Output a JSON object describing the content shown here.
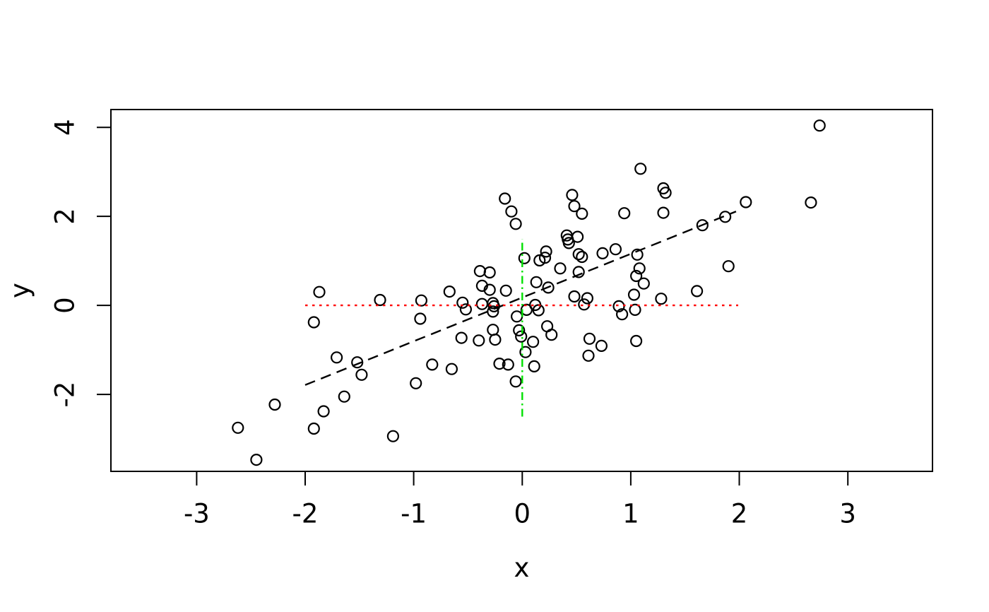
{
  "chart_data": {
    "type": "scatter",
    "title": "",
    "xlabel": "x",
    "ylabel": "y",
    "x_ticks": [
      -3,
      -2,
      -1,
      0,
      1,
      2,
      3
    ],
    "y_ticks": [
      -2,
      0,
      2,
      4
    ],
    "xlim": [
      -3.79,
      3.78
    ],
    "ylim": [
      -3.73,
      4.4
    ],
    "grid": false,
    "legend": "none",
    "marker": "open-circle",
    "marker_color": "#000000",
    "background": "#ffffff",
    "points": [
      [
        -2.62,
        -2.75
      ],
      [
        -2.45,
        -3.47
      ],
      [
        -2.28,
        -2.23
      ],
      [
        -1.92,
        -2.77
      ],
      [
        -1.83,
        -2.38
      ],
      [
        -1.64,
        -2.05
      ],
      [
        -1.19,
        -2.94
      ],
      [
        -1.71,
        -1.17
      ],
      [
        -1.52,
        -1.28
      ],
      [
        -1.48,
        -1.56
      ],
      [
        -1.92,
        -0.38
      ],
      [
        -1.87,
        0.3
      ],
      [
        -1.31,
        0.12
      ],
      [
        -0.98,
        -1.75
      ],
      [
        -0.94,
        -0.3
      ],
      [
        -0.93,
        0.11
      ],
      [
        -0.83,
        -1.33
      ],
      [
        -0.67,
        0.31
      ],
      [
        -0.65,
        -1.43
      ],
      [
        -0.56,
        -0.73
      ],
      [
        -0.55,
        0.06
      ],
      [
        -0.52,
        -0.09
      ],
      [
        -0.4,
        -0.79
      ],
      [
        -0.39,
        0.77
      ],
      [
        -0.3,
        0.74
      ],
      [
        -0.37,
        0.44
      ],
      [
        -0.3,
        0.35
      ],
      [
        -0.15,
        0.33
      ],
      [
        -0.37,
        0.03
      ],
      [
        -0.27,
        0.05
      ],
      [
        -0.26,
        -0.02
      ],
      [
        -0.27,
        -0.14
      ],
      [
        -0.27,
        -0.55
      ],
      [
        -0.25,
        -0.77
      ],
      [
        -0.21,
        -1.31
      ],
      [
        -0.13,
        -1.33
      ],
      [
        -0.06,
        -1.71
      ],
      [
        -0.05,
        -0.25
      ],
      [
        -0.03,
        -0.56
      ],
      [
        -0.01,
        -0.7
      ],
      [
        0.03,
        -1.05
      ],
      [
        0.04,
        -0.1
      ],
      [
        0.1,
        -0.82
      ],
      [
        0.11,
        -1.37
      ],
      [
        0.12,
        0.01
      ],
      [
        0.15,
        -0.11
      ],
      [
        0.23,
        -0.47
      ],
      [
        0.27,
        -0.66
      ],
      [
        0.02,
        1.06
      ],
      [
        0.16,
        1.01
      ],
      [
        0.21,
        1.07
      ],
      [
        0.22,
        1.21
      ],
      [
        0.13,
        0.52
      ],
      [
        0.24,
        0.4
      ],
      [
        0.35,
        0.83
      ],
      [
        0.41,
        1.57
      ],
      [
        0.42,
        1.48
      ],
      [
        0.43,
        1.4
      ],
      [
        0.51,
        1.54
      ],
      [
        0.52,
        1.15
      ],
      [
        0.55,
        1.09
      ],
      [
        0.52,
        0.75
      ],
      [
        0.48,
        0.2
      ],
      [
        0.57,
        0.02
      ],
      [
        0.6,
        0.16
      ],
      [
        0.74,
        1.17
      ],
      [
        0.86,
        1.26
      ],
      [
        -0.16,
        2.4
      ],
      [
        -0.1,
        2.11
      ],
      [
        -0.06,
        1.83
      ],
      [
        0.46,
        2.48
      ],
      [
        0.48,
        2.23
      ],
      [
        0.55,
        2.06
      ],
      [
        0.94,
        2.07
      ],
      [
        1.09,
        3.07
      ],
      [
        1.06,
        1.14
      ],
      [
        1.08,
        0.83
      ],
      [
        1.05,
        0.66
      ],
      [
        1.12,
        0.49
      ],
      [
        1.03,
        0.24
      ],
      [
        1.28,
        0.15
      ],
      [
        0.89,
        -0.02
      ],
      [
        0.92,
        -0.2
      ],
      [
        1.04,
        -0.1
      ],
      [
        0.62,
        -0.75
      ],
      [
        0.73,
        -0.91
      ],
      [
        0.61,
        -1.13
      ],
      [
        1.05,
        -0.8
      ],
      [
        1.61,
        0.32
      ],
      [
        1.9,
        0.88
      ],
      [
        1.3,
        2.63
      ],
      [
        1.32,
        2.53
      ],
      [
        1.3,
        2.08
      ],
      [
        1.66,
        1.8
      ],
      [
        1.87,
        1.99
      ],
      [
        2.06,
        2.32
      ],
      [
        2.66,
        2.31
      ],
      [
        2.74,
        4.04
      ]
    ],
    "lines": [
      {
        "name": "fit-line",
        "x1": -2.0,
        "y1": -1.79,
        "x2": 1.97,
        "y2": 2.11,
        "color": "#000000",
        "style": "dashed"
      },
      {
        "name": "zero-horizontal-line",
        "x1": -2.0,
        "y1": 0,
        "x2": 1.99,
        "y2": 0,
        "color": "#ff0000",
        "style": "dotted"
      },
      {
        "name": "zero-vertical-line",
        "x1": 0,
        "y1": -2.5,
        "x2": 0,
        "y2": 1.49,
        "color": "#00e000",
        "style": "dotdash"
      }
    ]
  }
}
